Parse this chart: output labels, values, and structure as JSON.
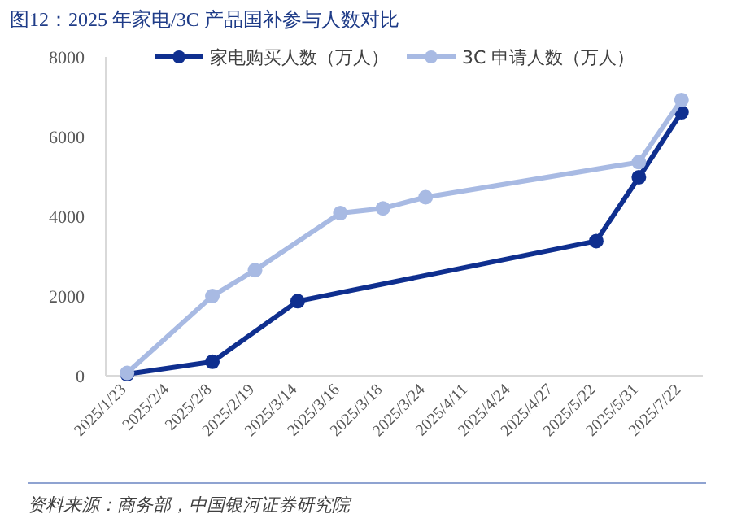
{
  "chart_data": {
    "type": "line",
    "title": "图12：2025 年家电/3C 产品国补参与人数对比",
    "categories": [
      "2025/1/23",
      "2025/2/4",
      "2025/2/8",
      "2025/2/19",
      "2025/3/14",
      "2025/3/16",
      "2025/3/18",
      "2025/3/24",
      "2025/4/11",
      "2025/4/24",
      "2025/4/27",
      "2025/5/22",
      "2025/5/31",
      "2025/7/22"
    ],
    "series": [
      {
        "name": "家电购买人数（万人）",
        "color": "#0f2f8f",
        "values": [
          40,
          null,
          350,
          null,
          1870,
          null,
          null,
          null,
          null,
          null,
          null,
          3380,
          4980,
          6610
        ]
      },
      {
        "name": "3C 申请人数（万人）",
        "color": "#a8bae3",
        "values": [
          70,
          null,
          2000,
          2650,
          null,
          4080,
          4200,
          4480,
          null,
          null,
          null,
          null,
          5360,
          6920
        ]
      }
    ],
    "ylim": [
      0,
      8000
    ],
    "yticks": [
      0,
      2000,
      4000,
      6000,
      8000
    ],
    "grid": false,
    "legend": "top",
    "marker": "circle",
    "line_style": "solid",
    "annotations": [
      "资料来源：商务部，中国银河证券研究院"
    ]
  }
}
